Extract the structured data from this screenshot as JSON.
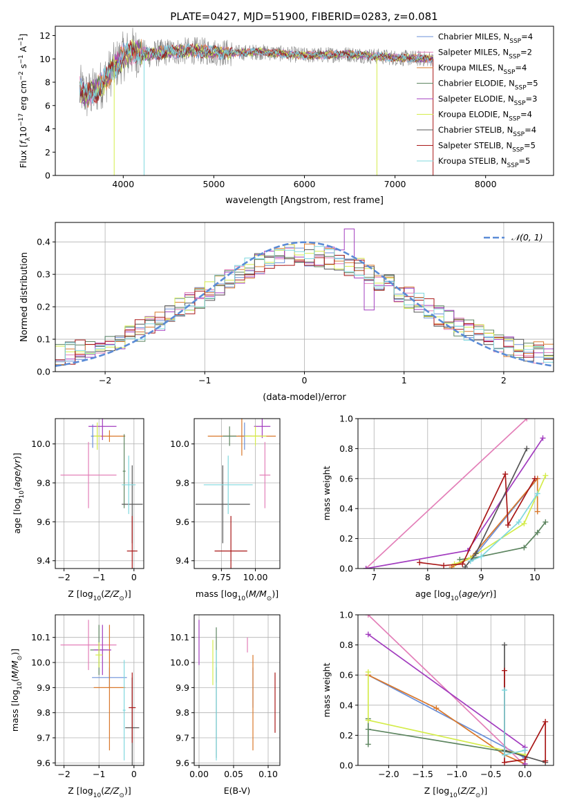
{
  "figure_title": "PLATE=0427, MJD=51900, FIBERID=0283, z=0.081",
  "colors": {
    "chabrier_miles": "#6a8fd8",
    "salpeter_miles": "#e37fb8",
    "kroupa_miles": "#d9782b",
    "chabrier_elodie": "#5d8560",
    "salpeter_elodie": "#a23cbf",
    "kroupa_elodie": "#d4ec4a",
    "chabrier_stelib": "#555555",
    "salpeter_stelib": "#a81616",
    "kroupa_stelib": "#7fd8de",
    "data": "#808080",
    "normal": "#5b8bd6"
  },
  "chart_data": [
    {
      "id": "spectrum",
      "type": "line",
      "title": "PLATE=0427, MJD=51900, FIBERID=0283, z=0.081",
      "xlabel": "wavelength [Angstrom, rest frame]",
      "ylabel": "Flux [f_λ 10^-17 erg cm^-2 s^-1 A^-1]",
      "xlim": [
        3250,
        8750
      ],
      "ylim": [
        0,
        12.8
      ],
      "xticks": [
        4000,
        5000,
        6000,
        7000,
        8000
      ],
      "yticks": [
        0,
        2,
        4,
        6,
        8,
        10,
        12
      ],
      "legend_placement": "upper right",
      "continuum_x": [
        3520,
        3600,
        3700,
        3800,
        3900,
        4000,
        4100,
        4300,
        4500,
        4800,
        5000,
        5200,
        5500,
        6000,
        6500,
        7000,
        7400
      ],
      "continuum_y": [
        7.4,
        6.8,
        7.3,
        8.2,
        9.3,
        10.2,
        10.6,
        10.4,
        10.6,
        10.7,
        10.6,
        10.5,
        10.6,
        10.3,
        10.4,
        10.1,
        10.0
      ],
      "series": [
        {
          "key": "chabrier_miles",
          "name": "Chabrier MILES, N_SSP=4"
        },
        {
          "key": "salpeter_miles",
          "name": "Salpeter MILES, N_SSP=2"
        },
        {
          "key": "kroupa_miles",
          "name": "Kroupa MILES, N_SSP=4"
        },
        {
          "key": "chabrier_elodie",
          "name": "Chabrier ELODIE, N_SSP=5"
        },
        {
          "key": "salpeter_elodie",
          "name": "Salpeter ELODIE, N_SSP=3"
        },
        {
          "key": "kroupa_elodie",
          "name": "Kroupa ELODIE, N_SSP=4"
        },
        {
          "key": "chabrier_stelib",
          "name": "Chabrier STELIB, N_SSP=4"
        },
        {
          "key": "salpeter_stelib",
          "name": "Salpeter STELIB, N_SSP=5"
        },
        {
          "key": "kroupa_stelib",
          "name": "Kroupa STELIB, N_SSP=5"
        }
      ],
      "drops": [
        {
          "key": "kroupa_elodie",
          "x": 3900,
          "to": 0
        },
        {
          "key": "kroupa_stelib",
          "x": 4230,
          "to": 0
        },
        {
          "key": "kroupa_elodie",
          "x": 6800,
          "to": 0
        },
        {
          "key": "salpeter_stelib",
          "x": 7420,
          "to": 0
        }
      ]
    },
    {
      "id": "residuals",
      "type": "line",
      "xlabel": "(data-model)/error",
      "ylabel": "Normed distribution",
      "xlim": [
        -2.5,
        2.5
      ],
      "ylim": [
        0,
        0.46
      ],
      "xticks": [
        -2,
        -1,
        0,
        1,
        2
      ],
      "yticks": [
        0.0,
        0.1,
        0.2,
        0.3,
        0.4
      ],
      "legend": "𝒩(0, 1)",
      "legend_placement": "upper right",
      "bin_width": 0.1,
      "bin_start": -2.5
    },
    {
      "id": "age_vs_Z",
      "type": "scatter",
      "xlabel": "Z [log10(Z/Z⊙)]",
      "ylabel": "age [log10(age/yr)]",
      "xlim": [
        -2.25,
        0.28
      ],
      "ylim": [
        9.36,
        10.13
      ],
      "xticks": [
        -2,
        -1,
        0
      ],
      "yticks": [
        9.4,
        9.6,
        9.8,
        10.0
      ],
      "points": [
        {
          "key": "chabrier_miles",
          "x": -1.18,
          "xerr": 0.05,
          "y": 10.04,
          "yerr": 0.06
        },
        {
          "key": "salpeter_miles",
          "x": -1.3,
          "xerr": 0.8,
          "y": 9.84,
          "yerr": 0.17
        },
        {
          "key": "kroupa_miles",
          "x": -0.7,
          "xerr": 0.45,
          "y": 10.04,
          "yerr": 0.03
        },
        {
          "key": "chabrier_elodie",
          "x": -0.28,
          "xerr": 0.04,
          "y": 9.86,
          "yerr": 0.19
        },
        {
          "key": "salpeter_elodie",
          "x": -0.9,
          "xerr": 0.4,
          "y": 10.09,
          "yerr": 0.07
        },
        {
          "key": "kroupa_elodie",
          "x": -1.05,
          "xerr": 0.1,
          "y": 10.04,
          "yerr": 0.07
        },
        {
          "key": "chabrier_stelib",
          "x": -0.05,
          "xerr": 0.3,
          "y": 9.69,
          "yerr": 0.2
        },
        {
          "key": "salpeter_stelib",
          "x": -0.05,
          "xerr": 0.15,
          "y": 9.45,
          "yerr": 0.18
        },
        {
          "key": "kroupa_stelib",
          "x": -0.15,
          "xerr": 0.2,
          "y": 9.79,
          "yerr": 0.15
        }
      ]
    },
    {
      "id": "age_vs_mass",
      "type": "scatter",
      "xlabel": "mass [log10(M/M⊙)]",
      "ylabel": "",
      "xlim": [
        9.55,
        10.18
      ],
      "ylim": [
        9.36,
        10.13
      ],
      "xticks": [
        9.75,
        10.0
      ],
      "yticks": [
        9.4,
        9.6,
        9.8,
        10.0
      ],
      "points": [
        {
          "key": "chabrier_miles",
          "x": 9.92,
          "xerr": 0.05,
          "y": 10.04,
          "yerr": 0.07
        },
        {
          "key": "salpeter_miles",
          "x": 10.07,
          "xerr": 0.04,
          "y": 9.84,
          "yerr": 0.17
        },
        {
          "key": "kroupa_miles",
          "x": 9.9,
          "xerr": 0.25,
          "y": 10.04,
          "yerr": 0.1
        },
        {
          "key": "chabrier_elodie",
          "x": 9.81,
          "xerr": 0.05,
          "y": 10.04,
          "yerr": 0.05
        },
        {
          "key": "salpeter_elodie",
          "x": 10.05,
          "xerr": 0.06,
          "y": 10.09,
          "yerr": 0.06
        },
        {
          "key": "kroupa_elodie",
          "x": 10.0,
          "xerr": 0.08,
          "y": 10.04,
          "yerr": 0.05
        },
        {
          "key": "chabrier_stelib",
          "x": 9.76,
          "xerr": 0.2,
          "y": 9.69,
          "yerr": 0.2
        },
        {
          "key": "salpeter_stelib",
          "x": 9.82,
          "xerr": 0.12,
          "y": 9.45,
          "yerr": 0.18
        },
        {
          "key": "kroupa_stelib",
          "x": 9.8,
          "xerr": 0.18,
          "y": 9.79,
          "yerr": 0.15
        }
      ]
    },
    {
      "id": "weight_vs_age",
      "type": "line",
      "xlabel": "age [log10(age/yr)]",
      "ylabel": "mass weight",
      "xlim": [
        6.7,
        10.35
      ],
      "ylim": [
        0.0,
        1.0
      ],
      "xticks": [
        7,
        8,
        9,
        10
      ],
      "yticks": [
        0.0,
        0.2,
        0.4,
        0.6,
        0.8,
        1.0
      ],
      "series": [
        {
          "key": "chabrier_miles",
          "x": [
            8.8,
            10.05
          ],
          "y": [
            0.05,
            0.6
          ]
        },
        {
          "key": "salpeter_miles",
          "x": [
            6.85,
            9.85
          ],
          "y": [
            0.0,
            1.0
          ]
        },
        {
          "key": "kroupa_miles",
          "x": [
            8.45,
            8.8,
            10.05,
            10.05
          ],
          "y": [
            0.01,
            0.07,
            0.6,
            0.38
          ]
        },
        {
          "key": "chabrier_elodie",
          "x": [
            8.6,
            8.85,
            9.8,
            10.05,
            10.2
          ],
          "y": [
            0.06,
            0.07,
            0.14,
            0.24,
            0.31
          ]
        },
        {
          "key": "salpeter_elodie",
          "x": [
            6.85,
            8.75,
            10.15
          ],
          "y": [
            0.0,
            0.12,
            0.87
          ]
        },
        {
          "key": "kroupa_elodie",
          "x": [
            8.5,
            8.8,
            9.8,
            10.2
          ],
          "y": [
            0.03,
            0.07,
            0.3,
            0.62
          ]
        },
        {
          "key": "chabrier_stelib",
          "x": [
            8.7,
            8.9,
            9.85
          ],
          "y": [
            0.01,
            0.1,
            0.8
          ]
        },
        {
          "key": "salpeter_stelib",
          "x": [
            7.85,
            8.3,
            8.65,
            9.45,
            9.5,
            10.0
          ],
          "y": [
            0.04,
            0.02,
            0.03,
            0.63,
            0.29,
            0.6
          ]
        },
        {
          "key": "kroupa_stelib",
          "x": [
            8.8,
            9.0,
            9.7,
            10.05
          ],
          "y": [
            0.05,
            0.08,
            0.31,
            0.5
          ]
        }
      ]
    },
    {
      "id": "mass_vs_Z",
      "type": "scatter",
      "xlabel": "Z [log10(Z/Z⊙)]",
      "ylabel": "mass [log10(M/M⊙)]",
      "xlim": [
        -2.25,
        0.28
      ],
      "ylim": [
        9.59,
        10.19
      ],
      "xticks": [
        -2,
        -1,
        0
      ],
      "yticks": [
        9.6,
        9.7,
        9.8,
        9.9,
        10.0,
        10.1
      ],
      "points": [
        {
          "key": "chabrier_miles",
          "x": -0.7,
          "xerr": 0.5,
          "y": 9.94,
          "yerr": 0.04
        },
        {
          "key": "salpeter_miles",
          "x": -1.3,
          "xerr": 0.8,
          "y": 10.07,
          "yerr": 0.1
        },
        {
          "key": "kroupa_miles",
          "x": -0.7,
          "xerr": 0.45,
          "y": 9.9,
          "yerr": 0.25
        },
        {
          "key": "chabrier_elodie",
          "x": -1.0,
          "xerr": 0.25,
          "y": 10.05,
          "yerr": 0.1
        },
        {
          "key": "salpeter_elodie",
          "x": -0.9,
          "xerr": 0.25,
          "y": 10.05,
          "yerr": 0.1
        },
        {
          "key": "kroupa_elodie",
          "x": -1.0,
          "xerr": 0.1,
          "y": 10.03,
          "yerr": 0.05
        },
        {
          "key": "chabrier_stelib",
          "x": -0.05,
          "xerr": 0.2,
          "y": 9.74,
          "yerr": 0.2
        },
        {
          "key": "salpeter_stelib",
          "x": -0.05,
          "xerr": 0.1,
          "y": 9.82,
          "yerr": 0.14
        },
        {
          "key": "kroupa_stelib",
          "x": -0.28,
          "xerr": 0.04,
          "y": 9.81,
          "yerr": 0.2
        }
      ]
    },
    {
      "id": "mass_vs_EBV",
      "type": "scatter",
      "xlabel": "E(B-V)",
      "ylabel": "",
      "xlim": [
        -0.007,
        0.117
      ],
      "ylim": [
        9.59,
        10.19
      ],
      "xticks": [
        0.0,
        0.05,
        0.1
      ],
      "yticks": [
        9.6,
        9.7,
        9.8,
        9.9,
        10.0,
        10.1
      ],
      "points": [
        {
          "key": "chabrier_miles",
          "x": 0.078,
          "xerr": 0,
          "y": 9.9,
          "yerr": 0.08
        },
        {
          "key": "salpeter_miles",
          "x": 0.07,
          "xerr": 0,
          "y": 10.07,
          "yerr": 0.03
        },
        {
          "key": "kroupa_miles",
          "x": 0.078,
          "xerr": 0,
          "y": 9.84,
          "yerr": 0.19
        },
        {
          "key": "chabrier_elodie",
          "x": 0.025,
          "xerr": 0,
          "y": 10.03,
          "yerr": 0.11
        },
        {
          "key": "salpeter_elodie",
          "x": 0.0,
          "xerr": 0,
          "y": 10.08,
          "yerr": 0.09
        },
        {
          "key": "kroupa_elodie",
          "x": 0.02,
          "xerr": 0,
          "y": 10.0,
          "yerr": 0.09
        },
        {
          "key": "chabrier_stelib",
          "x": 0.025,
          "xerr": 0,
          "y": 9.8,
          "yerr": 0.18
        },
        {
          "key": "salpeter_stelib",
          "x": 0.11,
          "xerr": 0,
          "y": 9.84,
          "yerr": 0.12
        },
        {
          "key": "kroupa_stelib",
          "x": 0.025,
          "xerr": 0,
          "y": 9.83,
          "yerr": 0.22
        }
      ]
    },
    {
      "id": "weight_vs_Z",
      "type": "line",
      "xlabel": "Z [log10(Z/Z⊙)]",
      "ylabel": "mass weight",
      "xlim": [
        -2.45,
        0.42
      ],
      "ylim": [
        0.0,
        1.0
      ],
      "xticks": [
        -2.0,
        -1.5,
        -1.0,
        -0.5,
        0.0
      ],
      "yticks": [
        0.0,
        0.2,
        0.4,
        0.6,
        0.8,
        1.0
      ],
      "series": [
        {
          "key": "chabrier_miles",
          "x": [
            -2.3,
            0.0
          ],
          "y": [
            0.6,
            0.05
          ]
        },
        {
          "key": "salpeter_miles",
          "x": [
            -2.3,
            0.0
          ],
          "y": [
            1.0,
            0.0
          ]
        },
        {
          "key": "kroupa_miles",
          "x": [
            -2.3,
            -1.3,
            -0.3,
            0.0
          ],
          "y": [
            0.6,
            0.38,
            0.07,
            0.01
          ]
        },
        {
          "key": "chabrier_elodie",
          "x": [
            -2.3,
            -2.3,
            -2.3,
            0.0
          ],
          "y": [
            0.14,
            0.31,
            0.24,
            0.07
          ]
        },
        {
          "key": "salpeter_elodie",
          "x": [
            -2.3,
            0.0,
            0.0
          ],
          "y": [
            0.87,
            0.12,
            0.01
          ]
        },
        {
          "key": "kroupa_elodie",
          "x": [
            -2.3,
            -2.3,
            0.0
          ],
          "y": [
            0.62,
            0.3,
            0.07
          ]
        },
        {
          "key": "chabrier_stelib",
          "x": [
            -0.3,
            -0.3,
            0.3
          ],
          "y": [
            0.8,
            0.1,
            0.02
          ]
        },
        {
          "key": "salpeter_stelib",
          "x": [
            -0.3,
            -0.3,
            0.0,
            0.3,
            0.3
          ],
          "y": [
            0.63,
            0.02,
            0.04,
            0.29,
            0.03
          ]
        },
        {
          "key": "kroupa_stelib",
          "x": [
            -0.3,
            -0.3,
            0.0
          ],
          "y": [
            0.5,
            0.07,
            0.1
          ]
        }
      ]
    }
  ]
}
